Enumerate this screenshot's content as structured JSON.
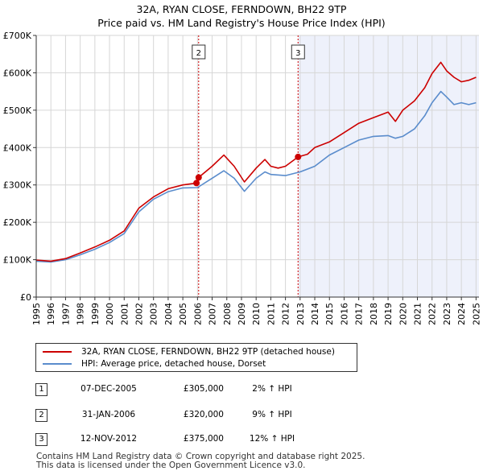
{
  "chart_data": {
    "type": "line",
    "title": "32A, RYAN CLOSE, FERNDOWN, BH22 9TP",
    "subtitle": "Price paid vs. HM Land Registry's House Price Index (HPI)",
    "xlim": [
      1995,
      2025.2
    ],
    "ylim": [
      0,
      700000
    ],
    "x_ticks": [
      1995,
      1996,
      1997,
      1998,
      1999,
      2000,
      2001,
      2002,
      2003,
      2004,
      2005,
      2006,
      2007,
      2008,
      2009,
      2010,
      2011,
      2012,
      2013,
      2014,
      2015,
      2016,
      2017,
      2018,
      2019,
      2020,
      2021,
      2022,
      2023,
      2024,
      2025
    ],
    "y_ticks": [
      {
        "value": 0,
        "label": "£0"
      },
      {
        "value": 100000,
        "label": "£100K"
      },
      {
        "value": 200000,
        "label": "£200K"
      },
      {
        "value": 300000,
        "label": "£300K"
      },
      {
        "value": 400000,
        "label": "£400K"
      },
      {
        "value": 500000,
        "label": "£500K"
      },
      {
        "value": 600000,
        "label": "£600K"
      },
      {
        "value": 700000,
        "label": "£700K"
      }
    ],
    "grid": true,
    "shaded_region": {
      "from": 2012.87,
      "to": 2025.2
    },
    "series": [
      {
        "name": "32A, RYAN CLOSE, FERNDOWN, BH22 9TP (detached house)",
        "color": "#cc0000",
        "x": [
          1995,
          1996,
          1997,
          1998,
          1999,
          2000,
          2001,
          2002,
          2003,
          2004,
          2005,
          2005.93,
          2006.08,
          2007,
          2007.8,
          2008.5,
          2009.2,
          2010,
          2010.6,
          2011,
          2011.5,
          2012,
          2012.86,
          2013.5,
          2014,
          2015,
          2016,
          2017,
          2018,
          2019,
          2019.5,
          2020,
          2020.8,
          2021.5,
          2022,
          2022.6,
          2023,
          2023.5,
          2024,
          2024.5,
          2025
        ],
        "values": [
          99000,
          96000,
          103000,
          118000,
          134000,
          152000,
          177000,
          238000,
          268000,
          290000,
          300000,
          305000,
          320000,
          350000,
          380000,
          350000,
          308000,
          345000,
          368000,
          350000,
          345000,
          350000,
          375000,
          382000,
          400000,
          415000,
          440000,
          465000,
          480000,
          495000,
          470000,
          500000,
          525000,
          560000,
          598000,
          628000,
          605000,
          588000,
          576000,
          580000,
          588000
        ]
      },
      {
        "name": "HPI: Average price, detached house, Dorset",
        "color": "#5a8ccc",
        "x": [
          1995,
          1996,
          1997,
          1998,
          1999,
          2000,
          2001,
          2002,
          2003,
          2004,
          2005,
          2006,
          2007,
          2007.8,
          2008.5,
          2009.2,
          2010,
          2010.6,
          2011,
          2012,
          2013,
          2014,
          2015,
          2016,
          2017,
          2018,
          2019,
          2019.5,
          2020,
          2020.8,
          2021.5,
          2022,
          2022.6,
          2023,
          2023.5,
          2024,
          2024.5,
          2025
        ],
        "values": [
          96000,
          94000,
          100000,
          113000,
          128000,
          146000,
          170000,
          228000,
          262000,
          282000,
          292000,
          293000,
          318000,
          338000,
          318000,
          283000,
          318000,
          335000,
          328000,
          325000,
          335000,
          350000,
          380000,
          400000,
          420000,
          430000,
          432000,
          425000,
          430000,
          450000,
          485000,
          520000,
          550000,
          535000,
          515000,
          520000,
          515000,
          520000
        ]
      }
    ],
    "sales": [
      {
        "label": "1",
        "x": 2005.93,
        "value": 305000
      },
      {
        "label": "2",
        "x": 2006.08,
        "value": 320000
      },
      {
        "label": "3",
        "x": 2012.86,
        "value": 375000
      }
    ],
    "vlines": [
      {
        "label": "2",
        "x": 2006.08
      },
      {
        "label": "3",
        "x": 2012.86
      }
    ]
  },
  "legend": [
    {
      "label": "32A, RYAN CLOSE, FERNDOWN, BH22 9TP (detached house)",
      "color": "#cc0000"
    },
    {
      "label": "HPI: Average price, detached house, Dorset",
      "color": "#5a8ccc"
    }
  ],
  "transactions": [
    {
      "num": "1",
      "date": "07-DEC-2005",
      "price": "£305,000",
      "hpi": "2% ↑ HPI"
    },
    {
      "num": "2",
      "date": "31-JAN-2006",
      "price": "£320,000",
      "hpi": "9% ↑ HPI"
    },
    {
      "num": "3",
      "date": "12-NOV-2012",
      "price": "£375,000",
      "hpi": "12% ↑ HPI"
    }
  ],
  "footer": {
    "line1": "Contains HM Land Registry data © Crown copyright and database right 2025.",
    "line2": "This data is licensed under the Open Government Licence v3.0."
  }
}
